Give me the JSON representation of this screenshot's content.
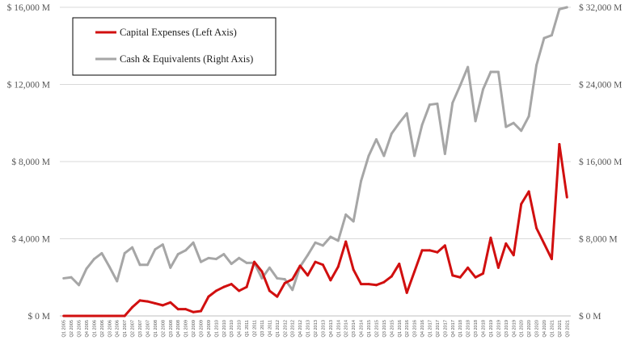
{
  "chart_data": {
    "type": "line",
    "title": "",
    "xlabel": "",
    "ylabel_left": "",
    "ylabel_right": "",
    "left_axis": {
      "ylim": [
        0,
        16000
      ],
      "ticks": [
        {
          "value": 0,
          "label": "$ 0 M"
        },
        {
          "value": 4000,
          "label": "$ 4,000 M"
        },
        {
          "value": 8000,
          "label": "$ 8,000 M"
        },
        {
          "value": 12000,
          "label": "$ 12,000 M"
        },
        {
          "value": 16000,
          "label": "$ 16,000 M"
        }
      ]
    },
    "right_axis": {
      "ylim": [
        0,
        32000
      ],
      "ticks": [
        {
          "value": 0,
          "label": "$ 0 M"
        },
        {
          "value": 8000,
          "label": "$ 8,000 M"
        },
        {
          "value": 16000,
          "label": "$ 16,000 M"
        },
        {
          "value": 24000,
          "label": "$ 24,000 M"
        },
        {
          "value": 32000,
          "label": "$ 32,000 M"
        }
      ]
    },
    "grid": "horizontal",
    "legend_position": "top-left",
    "categories": [
      "Q1 2005",
      "Q2 2005",
      "Q3 2005",
      "Q4 2005",
      "Q1 2006",
      "Q2 2006",
      "Q3 2006",
      "Q4 2006",
      "Q1 2007",
      "Q2 2007",
      "Q3 2007",
      "Q4 2007",
      "Q1 2008",
      "Q2 2008",
      "Q3 2008",
      "Q4 2008",
      "Q1 2009",
      "Q2 2009",
      "Q3 2009",
      "Q4 2009",
      "Q1 2010",
      "Q2 2010",
      "Q3 2010",
      "Q4 2010",
      "Q1 2011",
      "Q2 2011",
      "Q3 2011",
      "Q4 2011",
      "Q1 2012",
      "Q2 2012",
      "Q3 2012",
      "Q4 2012",
      "Q1 2013",
      "Q2 2013",
      "Q3 2013",
      "Q4 2013",
      "Q1 2014",
      "Q2 2014",
      "Q3 2014",
      "Q4 2014",
      "Q1 2015",
      "Q2 2015",
      "Q3 2015",
      "Q4 2015",
      "Q1 2016",
      "Q2 2016",
      "Q3 2016",
      "Q4 2016",
      "Q1 2017",
      "Q2 2017",
      "Q3 2017",
      "Q4 2017",
      "Q1 2018",
      "Q2 2018",
      "Q3 2018",
      "Q4 2018",
      "Q1 2019",
      "Q2 2019",
      "Q3 2019",
      "Q4 2019",
      "Q1 2020",
      "Q2 2020",
      "Q3 2020",
      "Q4 2020",
      "Q1 2021",
      "Q2 2021",
      "Q3 2021"
    ],
    "x_tick_labels": [
      "Q1 2005",
      "Q2 2005",
      "Q3 2005",
      "Q4 2005",
      "Q1 2006",
      "Q2 2006",
      "Q3 2006",
      "Q4 2006",
      "Q1 2007",
      "Q2 2007",
      "Q3 2007",
      "Q4 2007",
      "Q1 2008",
      "Q2 2008",
      "Q3 2008",
      "Q4 2008",
      "Q1 2009",
      "Q2 2009",
      "Q3 2009",
      "Q4 2009",
      "Q1 2010",
      "Q2 2010",
      "Q3 2010",
      "Q4 2010",
      "Q1 2011",
      "Q2 2011",
      "Q3 2011",
      "Q4 2011",
      "Q1 2012",
      "Q2 2012",
      "Q3 2012",
      "Q4 2012",
      "Q1 2013",
      "Q2 2013",
      "Q3 2013",
      "Q4 2013",
      "Q1 2014",
      "Q2 2014",
      "Q3 2014",
      "Q4 2014",
      "Q1 2015",
      "Q2 2015",
      "Q3 2015",
      "Q4 2015",
      "Q1 2016",
      "Q2 2016",
      "Q3 2016",
      "Q4 2016",
      "Q1 2017",
      "Q2 2017",
      "Q3 2017",
      "Q4 2017",
      "Q1 2018",
      "Q2 2018",
      "Q3 2018",
      "Q4 2018",
      "Q1 2019",
      "Q2 2019",
      "Q3 2019",
      "Q4 2019",
      "Q1 2020",
      "Q2 2020",
      "Q3 2020",
      "Q4 2020",
      "Q1 2021",
      "Q2 2021",
      "Q3 2021"
    ],
    "series": [
      {
        "name": "Capital Expenses (Left Axis)",
        "axis": "left",
        "color": "#d10f0f",
        "values": [
          0,
          0,
          0,
          0,
          0,
          0,
          0,
          0,
          0,
          450,
          800,
          750,
          650,
          550,
          700,
          350,
          350,
          200,
          250,
          1000,
          1300,
          1500,
          1650,
          1300,
          1500,
          2800,
          2300,
          1300,
          1000,
          1700,
          1900,
          2600,
          2100,
          2800,
          2650,
          1850,
          2550,
          3850,
          2400,
          1650,
          1650,
          1600,
          1750,
          2050,
          2700,
          1200,
          2300,
          3400,
          3400,
          3300,
          3650,
          2100,
          2000,
          2500,
          2000,
          2200,
          4050,
          2500,
          3750,
          3150,
          5800,
          6450,
          4550,
          3750,
          2950,
          8900,
          6150
        ]
      },
      {
        "name": "Cash & Equivalents (Right Axis)",
        "axis": "right",
        "color": "#a6a6a6",
        "values": [
          3900,
          4000,
          3200,
          4900,
          5900,
          6500,
          5100,
          3600,
          6500,
          7100,
          5300,
          5300,
          6900,
          7400,
          5000,
          6400,
          6800,
          7600,
          5600,
          6000,
          5900,
          6400,
          5400,
          6000,
          5500,
          5500,
          3900,
          5000,
          3900,
          3800,
          2700,
          5100,
          6300,
          7600,
          7300,
          8200,
          7800,
          10500,
          9800,
          14000,
          16600,
          18300,
          16600,
          18900,
          20000,
          21000,
          16600,
          19800,
          21900,
          22000,
          16800,
          22100,
          23900,
          25800,
          20200,
          23500,
          25300,
          25300,
          19600,
          20000,
          19200,
          20700,
          26000,
          28800,
          29100,
          31800,
          32000
        ]
      }
    ]
  },
  "legend": {
    "capex_label": "Capital Expenses (Left Axis)",
    "cash_label": "Cash & Equivalents (Right Axis)"
  }
}
